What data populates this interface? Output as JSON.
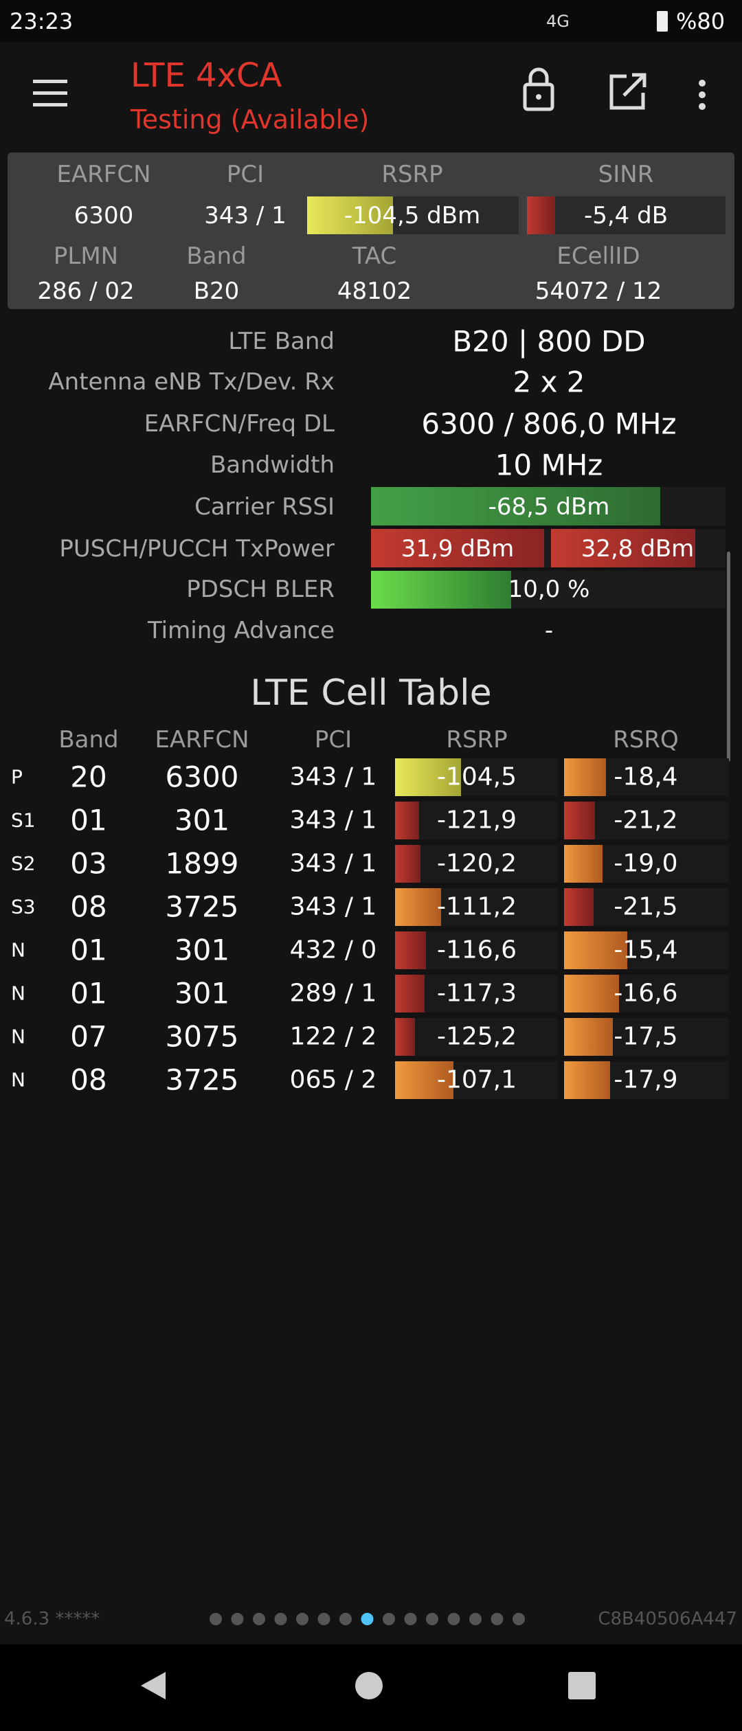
{
  "status_bar": {
    "time": "23:23",
    "network": "4G",
    "battery": "%80"
  },
  "header": {
    "title": "LTE 4xCA",
    "subtitle": "Testing (Available)"
  },
  "summary": {
    "headers": [
      "EARFCN",
      "PCI",
      "RSRP",
      "SINR"
    ],
    "values": [
      "6300",
      "343 / 1",
      "-104,5 dBm",
      "-5,4 dB"
    ],
    "headers2": [
      "PLMN",
      "Band",
      "TAC",
      "ECellID"
    ],
    "values2": [
      "286 / 02",
      "B20",
      "48102",
      "54072 / 12"
    ]
  },
  "details": [
    {
      "label": "LTE Band",
      "values": [
        "B20 | 800 DD"
      ]
    },
    {
      "label": "Antenna eNB Tx/Dev. Rx",
      "values": [
        "2 x 2"
      ]
    },
    {
      "label": "EARFCN/Freq DL",
      "values": [
        "6300 / 806,0 MHz"
      ]
    },
    {
      "label": "Bandwidth",
      "values": [
        "10 MHz"
      ]
    },
    {
      "label": "Carrier RSSI",
      "values": [
        "-68,5 dBm"
      ]
    },
    {
      "label": "PUSCH/PUCCH TxPower",
      "values": [
        "31,9 dBm",
        "32,8 dBm"
      ]
    },
    {
      "label": "PDSCH BLER",
      "values": [
        "10,0 %"
      ]
    },
    {
      "label": "Timing Advance",
      "values": [
        "-"
      ]
    }
  ],
  "cell_table": {
    "title": "LTE Cell Table",
    "columns": [
      "Band",
      "EARFCN",
      "PCI",
      "RSRP",
      "RSRQ"
    ],
    "rows": [
      [
        "P",
        "20",
        "6300",
        "343 / 1",
        "-104,5",
        "-18,4"
      ],
      [
        "S1",
        "01",
        "301",
        "343 / 1",
        "-121,9",
        "-21,2"
      ],
      [
        "S2",
        "03",
        "1899",
        "343 / 1",
        "-120,2",
        "-19,0"
      ],
      [
        "S3",
        "08",
        "3725",
        "343 / 1",
        "-111,2",
        "-21,5"
      ],
      [
        "N",
        "01",
        "301",
        "432 / 0",
        "-116,6",
        "-15,4"
      ],
      [
        "N",
        "01",
        "301",
        "289 / 1",
        "-117,3",
        "-16,6"
      ],
      [
        "N",
        "07",
        "3075",
        "122 / 2",
        "-125,2",
        "-17,5"
      ],
      [
        "N",
        "08",
        "3725",
        "065 / 2",
        "-107,1",
        "-17,9"
      ]
    ]
  },
  "footer": {
    "version": "4.6.3 *****",
    "device_id": "C8B40506A447"
  }
}
